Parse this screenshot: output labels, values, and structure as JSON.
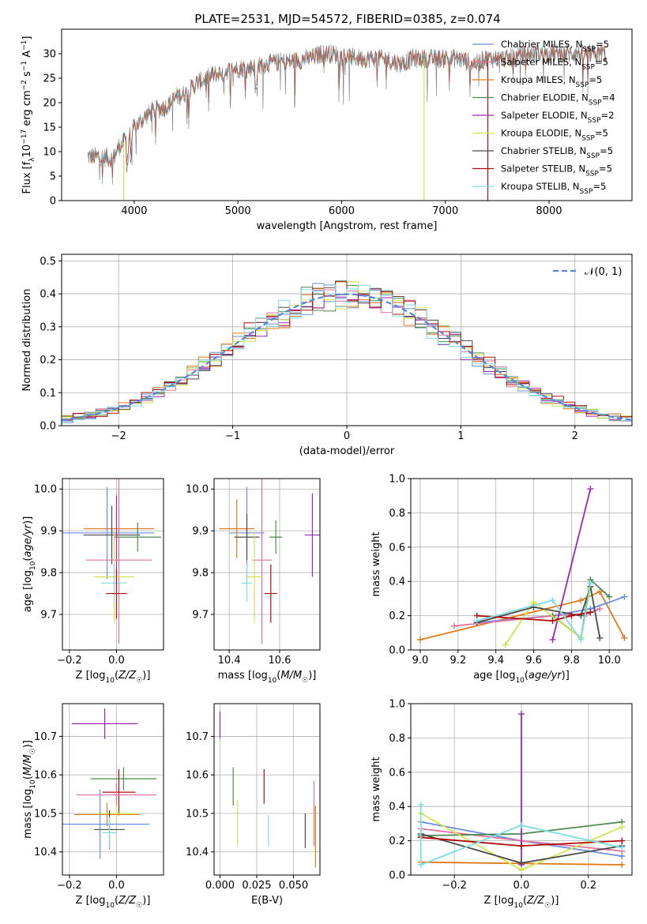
{
  "figure": {
    "title": "PLATE=2531, MJD=54572, FIBERID=0385, z=0.074"
  },
  "colors": {
    "Chabrier MILES": "#6a8ee0",
    "Salpeter MILES": "#e0709c",
    "Kroupa MILES": "#e07a1a",
    "Chabrier ELODIE": "#4f8a4f",
    "Salpeter ELODIE": "#9b27b5",
    "Kroupa ELODIE": "#cfe64a",
    "Chabrier STELIB": "#4a4a4a",
    "Salpeter STELIB": "#b00d0d",
    "Kroupa STELIB": "#7fdde0",
    "normal": "#5588dd",
    "grid": "#b0b0b0"
  },
  "chart_data": [
    {
      "id": "spectrum",
      "type": "line",
      "xlabel": "wavelength [Angstrom, rest frame]",
      "ylabel": "Flux [f_λ 10^-17 erg cm^-2 s^-1 A^-1]",
      "xlim": [
        3300,
        8800
      ],
      "ylim": [
        0,
        35
      ],
      "xticks": [
        "4000",
        "5000",
        "6000",
        "7000",
        "8000"
      ],
      "xtick_values": [
        4000,
        5000,
        6000,
        7000,
        8000
      ],
      "yticks": [
        "0",
        "5",
        "10",
        "15",
        "20",
        "25",
        "30"
      ],
      "ytick_values": [
        0,
        5,
        10,
        15,
        20,
        25,
        30
      ],
      "grid": false,
      "legend_position": "top-right",
      "legend": [
        {
          "label": "Chabrier MILES, N",
          "sub": "SSP",
          "tail": "=5",
          "color": "#6a8ee0"
        },
        {
          "label": "Salpeter MILES, N",
          "sub": "SSP",
          "tail": "=5",
          "color": "#e0709c"
        },
        {
          "label": "Kroupa MILES, N",
          "sub": "SSP",
          "tail": "=5",
          "color": "#e07a1a"
        },
        {
          "label": "Chabrier ELODIE, N",
          "sub": "SSP",
          "tail": "=4",
          "color": "#4f8a4f"
        },
        {
          "label": "Salpeter ELODIE, N",
          "sub": "SSP",
          "tail": "=2",
          "color": "#9b27b5"
        },
        {
          "label": "Kroupa ELODIE, N",
          "sub": "SSP",
          "tail": "=5",
          "color": "#cfe64a"
        },
        {
          "label": "Chabrier STELIB, N",
          "sub": "SSP",
          "tail": "=5",
          "color": "#4a4a4a"
        },
        {
          "label": "Salpeter STELIB, N",
          "sub": "SSP",
          "tail": "=5",
          "color": "#b00d0d"
        },
        {
          "label": "Kroupa STELIB, N",
          "sub": "SSP",
          "tail": "=5",
          "color": "#7fdde0"
        }
      ],
      "continuum": [
        [
          3550,
          9
        ],
        [
          3650,
          9
        ],
        [
          3800,
          8.5
        ],
        [
          3850,
          11
        ],
        [
          3950,
          13
        ],
        [
          4000,
          15
        ],
        [
          4100,
          17
        ],
        [
          4200,
          18.5
        ],
        [
          4300,
          19
        ],
        [
          4400,
          21
        ],
        [
          4500,
          22
        ],
        [
          4600,
          24
        ],
        [
          4700,
          25
        ],
        [
          4800,
          26
        ],
        [
          4900,
          26.5
        ],
        [
          5000,
          27
        ],
        [
          5100,
          27
        ],
        [
          5200,
          27.5
        ],
        [
          5300,
          28
        ],
        [
          5500,
          28.5
        ],
        [
          5700,
          29
        ],
        [
          5800,
          30
        ],
        [
          5900,
          30
        ],
        [
          6000,
          29.5
        ],
        [
          6200,
          29
        ],
        [
          6400,
          29
        ],
        [
          6560,
          28
        ],
        [
          6700,
          29
        ],
        [
          6900,
          29
        ],
        [
          7100,
          29
        ],
        [
          7300,
          28
        ],
        [
          7400,
          29
        ],
        [
          7600,
          29
        ],
        [
          7800,
          30
        ],
        [
          8000,
          30
        ],
        [
          8200,
          30
        ],
        [
          8400,
          30
        ],
        [
          8550,
          30
        ]
      ],
      "model_dropouts": [
        {
          "series": "Kroupa ELODIE",
          "x": 3900,
          "y_min": 0
        },
        {
          "series": "Kroupa ELODIE",
          "x": 6795,
          "y_min": 0
        },
        {
          "series": "Salpeter STELIB",
          "x": 7410,
          "y_min": 0
        }
      ]
    },
    {
      "id": "residuals",
      "type": "histogram",
      "xlabel": "(data-model)/error",
      "ylabel": "Normed distribution",
      "xlim": [
        -2.5,
        2.5
      ],
      "ylim": [
        0,
        0.52
      ],
      "xticks": [
        "−2",
        "−1",
        "0",
        "1",
        "2"
      ],
      "xtick_values": [
        -2,
        -1,
        0,
        1,
        2
      ],
      "yticks": [
        "0.0",
        "0.1",
        "0.2",
        "0.3",
        "0.4",
        "0.5"
      ],
      "ytick_values": [
        0,
        0.1,
        0.2,
        0.3,
        0.4,
        0.5
      ],
      "grid": true,
      "legend_position": "top-right",
      "legend": [
        {
          "label": "𝒩(0, 1)",
          "color": "#5588dd",
          "style": "dashed"
        }
      ],
      "bin_width": 0.1,
      "bin_start": -2.5,
      "reference_curve": "normal(0,1)"
    },
    {
      "id": "z-age",
      "type": "errorbar",
      "xlabel": "Z [log10(Z/Z☉)]",
      "ylabel": "age  [log10(age/yr)]",
      "xlim": [
        -0.23,
        0.2
      ],
      "ylim": [
        9.615,
        10.025
      ],
      "xticks": [
        "−0.2",
        "0.0"
      ],
      "xtick_values": [
        -0.2,
        0.0
      ],
      "yticks": [
        "9.7",
        "9.8",
        "9.9",
        "10.0"
      ],
      "ytick_values": [
        9.7,
        9.8,
        9.9,
        10.0
      ],
      "grid": true,
      "points": [
        {
          "series": "Chabrier MILES",
          "x": -0.04,
          "xerr": 0.2,
          "y": 9.895,
          "yerr": 0.11
        },
        {
          "series": "Kroupa MILES",
          "x": 0.01,
          "xerr": 0.15,
          "y": 9.905,
          "yerr": 0.07
        },
        {
          "series": "Chabrier STELIB",
          "x": -0.02,
          "xerr": 0.12,
          "y": 9.89,
          "yerr": 0.07
        },
        {
          "series": "Chabrier ELODIE",
          "x": 0.09,
          "xerr": 0.1,
          "y": 9.885,
          "yerr": 0.035
        },
        {
          "series": "Salpeter ELODIE",
          "x": 0.0,
          "xerr": 0.0,
          "y": 9.88,
          "yerr": 0.105
        },
        {
          "series": "Salpeter MILES",
          "x": 0.01,
          "xerr": 0.14,
          "y": 9.83,
          "yerr": 0.2
        },
        {
          "series": "Kroupa ELODIE",
          "x": -0.01,
          "xerr": 0.085,
          "y": 9.79,
          "yerr": 0.11
        },
        {
          "series": "Kroupa STELIB",
          "x": -0.01,
          "xerr": 0.055,
          "y": 9.775,
          "yerr": 0.045
        },
        {
          "series": "Salpeter STELIB",
          "x": 0.0,
          "xerr": 0.045,
          "y": 9.75,
          "yerr": 0.06
        }
      ]
    },
    {
      "id": "mass-age",
      "type": "errorbar",
      "xlabel": "mass [log10(M/M☉)]",
      "ylabel": "",
      "xlim": [
        10.34,
        10.76
      ],
      "ylim": [
        9.615,
        10.025
      ],
      "xticks": [
        "10.4",
        "10.6"
      ],
      "xtick_values": [
        10.4,
        10.6
      ],
      "yticks": [
        "9.7",
        "9.8",
        "9.9",
        "10.0"
      ],
      "ytick_values": [
        9.7,
        9.8,
        9.9,
        10.0
      ],
      "grid": true,
      "points": [
        {
          "series": "Chabrier MILES",
          "x": 10.47,
          "xerr": 0.07,
          "y": 9.895,
          "yerr": 0.11
        },
        {
          "series": "Kroupa MILES",
          "x": 10.43,
          "xerr": 0.07,
          "y": 9.905,
          "yerr": 0.07
        },
        {
          "series": "Chabrier STELIB",
          "x": 10.47,
          "xerr": 0.05,
          "y": 9.885,
          "yerr": 0.055
        },
        {
          "series": "Chabrier ELODIE",
          "x": 10.585,
          "xerr": 0.025,
          "y": 9.885,
          "yerr": 0.04
        },
        {
          "series": "Salpeter ELODIE",
          "x": 10.73,
          "xerr": 0.03,
          "y": 9.89,
          "yerr": 0.1
        },
        {
          "series": "Salpeter MILES",
          "x": 10.53,
          "xerr": 0.04,
          "y": 9.83,
          "yerr": 0.2
        },
        {
          "series": "Kroupa ELODIE",
          "x": 10.5,
          "xerr": 0.03,
          "y": 9.79,
          "yerr": 0.11
        },
        {
          "series": "Kroupa STELIB",
          "x": 10.47,
          "xerr": 0.02,
          "y": 9.775,
          "yerr": 0.045
        },
        {
          "series": "Salpeter STELIB",
          "x": 10.565,
          "xerr": 0.025,
          "y": 9.75,
          "yerr": 0.07
        }
      ]
    },
    {
      "id": "age-weight",
      "type": "line",
      "xlabel": "age  [log10(age/yr)]",
      "ylabel": "mass weight",
      "xlim": [
        8.95,
        10.12
      ],
      "ylim": [
        0,
        1.0
      ],
      "xticks": [
        "9.0",
        "9.2",
        "9.4",
        "9.6",
        "9.8",
        "10.0"
      ],
      "xtick_values": [
        9.0,
        9.2,
        9.4,
        9.6,
        9.8,
        10.0
      ],
      "yticks": [
        "0.0",
        "0.2",
        "0.4",
        "0.6",
        "0.8",
        "1.0"
      ],
      "ytick_values": [
        0,
        0.2,
        0.4,
        0.6,
        0.8,
        1.0
      ],
      "grid": true,
      "series": [
        {
          "name": "Kroupa MILES",
          "x": [
            9.0,
            9.85,
            9.95,
            10.08
          ],
          "y": [
            0.06,
            0.29,
            0.34,
            0.07
          ]
        },
        {
          "name": "Chabrier MILES",
          "x": [
            9.3,
            9.7,
            9.9,
            10.08
          ],
          "y": [
            0.16,
            0.2,
            0.24,
            0.31
          ]
        },
        {
          "name": "Salpeter MILES",
          "x": [
            9.18,
            9.7,
            9.88,
            9.95
          ],
          "y": [
            0.14,
            0.2,
            0.21,
            0.24
          ]
        },
        {
          "name": "Chabrier ELODIE",
          "x": [
            9.7,
            9.85,
            9.9,
            10.0
          ],
          "y": [
            0.2,
            0.07,
            0.41,
            0.31
          ]
        },
        {
          "name": "Salpeter ELODIE",
          "x": [
            9.7,
            9.9
          ],
          "y": [
            0.06,
            0.94
          ]
        },
        {
          "name": "Kroupa ELODIE",
          "x": [
            9.45,
            9.6,
            9.85,
            9.9
          ],
          "y": [
            0.03,
            0.28,
            0.07,
            0.36
          ]
        },
        {
          "name": "Chabrier STELIB",
          "x": [
            9.3,
            9.6,
            9.85,
            9.9,
            9.95
          ],
          "y": [
            0.16,
            0.25,
            0.2,
            0.37,
            0.07
          ]
        },
        {
          "name": "Salpeter STELIB",
          "x": [
            9.3,
            9.7,
            9.8,
            9.9
          ],
          "y": [
            0.2,
            0.17,
            0.2,
            0.22
          ]
        },
        {
          "name": "Kroupa STELIB",
          "x": [
            9.3,
            9.7,
            9.85,
            9.9
          ],
          "y": [
            0.17,
            0.29,
            0.06,
            0.39
          ]
        }
      ]
    },
    {
      "id": "z-mass",
      "type": "errorbar",
      "xlabel": "Z [log10(Z/Z☉)]",
      "ylabel": "mass [log10(M/M☉)]",
      "xlim": [
        -0.23,
        0.2
      ],
      "ylim": [
        10.34,
        10.785
      ],
      "xticks": [
        "−0.2",
        "0.0"
      ],
      "xtick_values": [
        -0.2,
        0.0
      ],
      "yticks": [
        "10.4",
        "10.5",
        "10.6",
        "10.7"
      ],
      "ytick_values": [
        10.4,
        10.5,
        10.6,
        10.7
      ],
      "grid": true,
      "points": [
        {
          "series": "Salpeter ELODIE",
          "x": -0.05,
          "xerr": 0.14,
          "y": 10.733,
          "yerr": 0.04
        },
        {
          "series": "Chabrier ELODIE",
          "x": 0.03,
          "xerr": 0.14,
          "y": 10.59,
          "yerr": 0.03
        },
        {
          "series": "Salpeter STELIB",
          "x": 0.01,
          "xerr": 0.07,
          "y": 10.555,
          "yerr": 0.06
        },
        {
          "series": "Salpeter MILES",
          "x": 0.0,
          "xerr": 0.17,
          "y": 10.548,
          "yerr": 0.03
        },
        {
          "series": "Kroupa MILES",
          "x": -0.04,
          "xerr": 0.14,
          "y": 10.497,
          "yerr": 0.03
        },
        {
          "series": "Kroupa ELODIE",
          "x": 0.0,
          "xerr": 0.09,
          "y": 10.5,
          "yerr": 0.02
        },
        {
          "series": "Chabrier MILES",
          "x": -0.07,
          "xerr": 0.21,
          "y": 10.472,
          "yerr": 0.09
        },
        {
          "series": "Chabrier STELIB",
          "x": -0.03,
          "xerr": 0.065,
          "y": 10.458,
          "yerr": 0.05
        },
        {
          "series": "Kroupa STELIB",
          "x": -0.03,
          "xerr": 0.03,
          "y": 10.45,
          "yerr": 0.04
        }
      ]
    },
    {
      "id": "ebv-mass",
      "type": "errorbar",
      "xlabel": "E(B-V)",
      "ylabel": "",
      "xlim": [
        -0.004,
        0.068
      ],
      "ylim": [
        10.34,
        10.785
      ],
      "xticks": [
        "0.000",
        "0.025",
        "0.050"
      ],
      "xtick_values": [
        0.0,
        0.025,
        0.05
      ],
      "yticks": [
        "10.4",
        "10.5",
        "10.6",
        "10.7"
      ],
      "ytick_values": [
        10.4,
        10.5,
        10.6,
        10.7
      ],
      "grid": true,
      "points": [
        {
          "series": "Salpeter ELODIE",
          "x": 0.0,
          "xerr": 0.0,
          "y": 10.73,
          "yerr": 0.035
        },
        {
          "series": "Chabrier ELODIE",
          "x": 0.009,
          "xerr": 0.0,
          "y": 10.57,
          "yerr": 0.05
        },
        {
          "series": "Kroupa ELODIE",
          "x": 0.012,
          "xerr": 0.0,
          "y": 10.475,
          "yerr": 0.06
        },
        {
          "series": "Salpeter STELIB",
          "x": 0.03,
          "xerr": 0.0,
          "y": 10.57,
          "yerr": 0.045
        },
        {
          "series": "Kroupa STELIB",
          "x": 0.033,
          "xerr": 0.0,
          "y": 10.455,
          "yerr": 0.04
        },
        {
          "series": "Chabrier STELIB",
          "x": 0.058,
          "xerr": 0.0,
          "y": 10.455,
          "yerr": 0.045
        },
        {
          "series": "Salpeter MILES",
          "x": 0.064,
          "xerr": 0.0,
          "y": 10.5,
          "yerr": 0.085
        },
        {
          "series": "Kroupa MILES",
          "x": 0.065,
          "xerr": 0.0,
          "y": 10.44,
          "yerr": 0.08
        }
      ]
    },
    {
      "id": "z-weight",
      "type": "line",
      "xlabel": "Z [log10(Z/Z☉)]",
      "ylabel": "mass weight",
      "xlim": [
        -0.33,
        0.33
      ],
      "ylim": [
        0,
        1.0
      ],
      "xticks": [
        "−0.2",
        "0.0",
        "0.2"
      ],
      "xtick_values": [
        -0.2,
        0.0,
        0.2
      ],
      "yticks": [
        "0.0",
        "0.2",
        "0.4",
        "0.6",
        "0.8",
        "1.0"
      ],
      "ytick_values": [
        0,
        0.2,
        0.4,
        0.6,
        0.8,
        1.0
      ],
      "grid": true,
      "series": [
        {
          "name": "Kroupa MILES",
          "x": [
            -0.3,
            0.3
          ],
          "y": [
            0.075,
            0.06
          ]
        },
        {
          "name": "Chabrier MILES",
          "x": [
            -0.3,
            0.0,
            0.3
          ],
          "y": [
            0.31,
            0.2,
            0.11
          ]
        },
        {
          "name": "Salpeter MILES",
          "x": [
            -0.3,
            0.0,
            0.3
          ],
          "y": [
            0.27,
            0.2,
            0.14
          ]
        },
        {
          "name": "Chabrier ELODIE",
          "x": [
            -0.3,
            0.0,
            0.3
          ],
          "y": [
            0.23,
            0.24,
            0.31
          ]
        },
        {
          "name": "Salpeter ELODIE",
          "x": [
            0.0,
            0.0
          ],
          "y": [
            0.06,
            0.94
          ]
        },
        {
          "name": "Kroupa ELODIE",
          "x": [
            -0.3,
            0.0,
            0.3
          ],
          "y": [
            0.36,
            0.03,
            0.28
          ]
        },
        {
          "name": "Chabrier STELIB",
          "x": [
            -0.3,
            0.0,
            0.3
          ],
          "y": [
            0.24,
            0.07,
            0.17
          ]
        },
        {
          "name": "Salpeter STELIB",
          "x": [
            -0.3,
            0.0,
            0.3
          ],
          "y": [
            0.22,
            0.17,
            0.2
          ]
        },
        {
          "name": "Kroupa STELIB",
          "x": [
            -0.3,
            -0.3,
            0.0,
            0.3
          ],
          "y": [
            0.41,
            0.06,
            0.29,
            0.16
          ]
        }
      ]
    }
  ]
}
